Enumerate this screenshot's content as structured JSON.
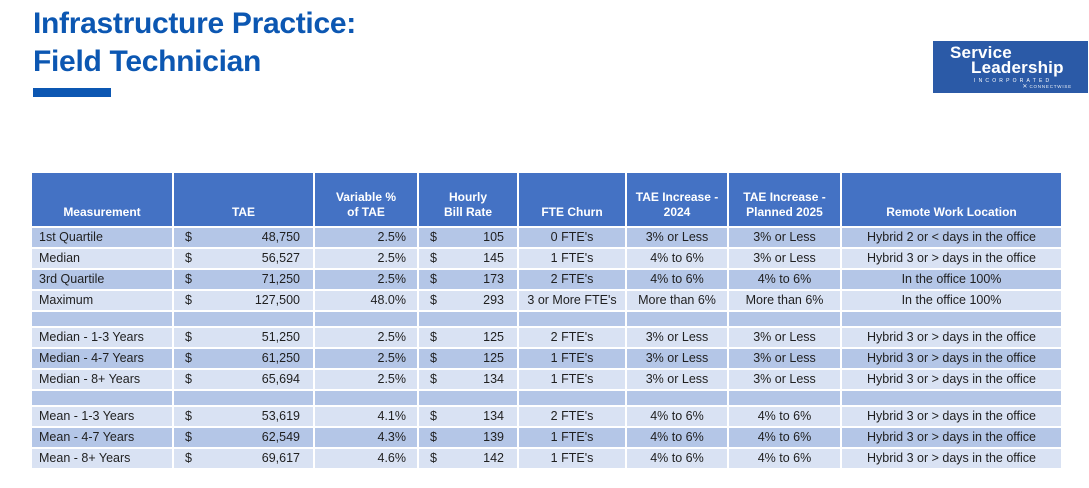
{
  "page": {
    "title_line1": "Infrastructure Practice:",
    "title_line2": "Field Technician",
    "accent_color": "#0c57b2"
  },
  "logo": {
    "line1": "Service",
    "line2": "Leadership",
    "line3": "INCORPORATED",
    "mark": "✕",
    "brand": "CONNECTWISE",
    "bg_color": "#2b5aa7"
  },
  "table": {
    "colors": {
      "header_bg": "#4472c4",
      "row_dark": "#b4c6e7",
      "row_light": "#d9e2f3",
      "gridline": "#ffffff"
    },
    "currency_symbol": "$",
    "columns": [
      {
        "key": "measurement",
        "lines": [
          "Measurement"
        ]
      },
      {
        "key": "tae",
        "lines": [
          "TAE"
        ]
      },
      {
        "key": "variable_pct",
        "lines": [
          "Variable %",
          "of TAE"
        ]
      },
      {
        "key": "hourly_bill_rate",
        "lines": [
          "Hourly",
          "Bill Rate"
        ]
      },
      {
        "key": "fte_churn",
        "lines": [
          "FTE Churn"
        ]
      },
      {
        "key": "tae_increase_2024",
        "lines": [
          "TAE Increase -",
          "2024"
        ]
      },
      {
        "key": "tae_increase_2025",
        "lines": [
          "TAE Increase -",
          "Planned 2025"
        ]
      },
      {
        "key": "remote",
        "lines": [
          "Remote Work Location"
        ]
      }
    ],
    "rows": [
      {
        "shade": "dark",
        "measurement": "1st Quartile",
        "tae": "48,750",
        "variable_pct": "2.5%",
        "hourly_bill_rate": "105",
        "fte_churn": "0 FTE's",
        "tae_increase_2024": "3% or Less",
        "tae_increase_2025": "3% or Less",
        "remote": "Hybrid 2 or < days in the office"
      },
      {
        "shade": "light",
        "measurement": "Median",
        "tae": "56,527",
        "variable_pct": "2.5%",
        "hourly_bill_rate": "145",
        "fte_churn": "1 FTE's",
        "tae_increase_2024": "4% to 6%",
        "tae_increase_2025": "3% or Less",
        "remote": "Hybrid 3 or > days in the office"
      },
      {
        "shade": "dark",
        "measurement": "3rd Quartile",
        "tae": "71,250",
        "variable_pct": "2.5%",
        "hourly_bill_rate": "173",
        "fte_churn": "2 FTE's",
        "tae_increase_2024": "4% to 6%",
        "tae_increase_2025": "4% to 6%",
        "remote": "In the office 100%"
      },
      {
        "shade": "light",
        "measurement": "Maximum",
        "tae": "127,500",
        "variable_pct": "48.0%",
        "hourly_bill_rate": "293",
        "fte_churn": "3 or More FTE's",
        "tae_increase_2024": "More than 6%",
        "tae_increase_2025": "More than 6%",
        "remote": "In the office 100%"
      },
      {
        "shade": "dark",
        "spacer": true
      },
      {
        "shade": "light",
        "measurement": "Median - 1-3 Years",
        "tae": "51,250",
        "variable_pct": "2.5%",
        "hourly_bill_rate": "125",
        "fte_churn": "2 FTE's",
        "tae_increase_2024": "3% or Less",
        "tae_increase_2025": "3% or Less",
        "remote": "Hybrid 3 or > days in the office"
      },
      {
        "shade": "dark",
        "measurement": "Median - 4-7 Years",
        "tae": "61,250",
        "variable_pct": "2.5%",
        "hourly_bill_rate": "125",
        "fte_churn": "1 FTE's",
        "tae_increase_2024": "3% or Less",
        "tae_increase_2025": "3% or Less",
        "remote": "Hybrid 3 or > days in the office"
      },
      {
        "shade": "light",
        "measurement": "Median - 8+ Years",
        "tae": "65,694",
        "variable_pct": "2.5%",
        "hourly_bill_rate": "134",
        "fte_churn": "1 FTE's",
        "tae_increase_2024": "3% or Less",
        "tae_increase_2025": "3% or Less",
        "remote": "Hybrid 3 or > days in the office"
      },
      {
        "shade": "dark",
        "spacer": true
      },
      {
        "shade": "light",
        "measurement": "Mean - 1-3 Years",
        "tae": "53,619",
        "variable_pct": "4.1%",
        "hourly_bill_rate": "134",
        "fte_churn": "2 FTE's",
        "tae_increase_2024": "4% to 6%",
        "tae_increase_2025": "4% to 6%",
        "remote": "Hybrid 3 or > days in the office"
      },
      {
        "shade": "dark",
        "measurement": "Mean - 4-7 Years",
        "tae": "62,549",
        "variable_pct": "4.3%",
        "hourly_bill_rate": "139",
        "fte_churn": "1 FTE's",
        "tae_increase_2024": "4% to 6%",
        "tae_increase_2025": "4% to 6%",
        "remote": "Hybrid 3 or > days in the office"
      },
      {
        "shade": "light",
        "measurement": "Mean - 8+ Years",
        "tae": "69,617",
        "variable_pct": "4.6%",
        "hourly_bill_rate": "142",
        "fte_churn": "1 FTE's",
        "tae_increase_2024": "4% to 6%",
        "tae_increase_2025": "4% to 6%",
        "remote": "Hybrid 3 or > days in the office"
      }
    ]
  }
}
